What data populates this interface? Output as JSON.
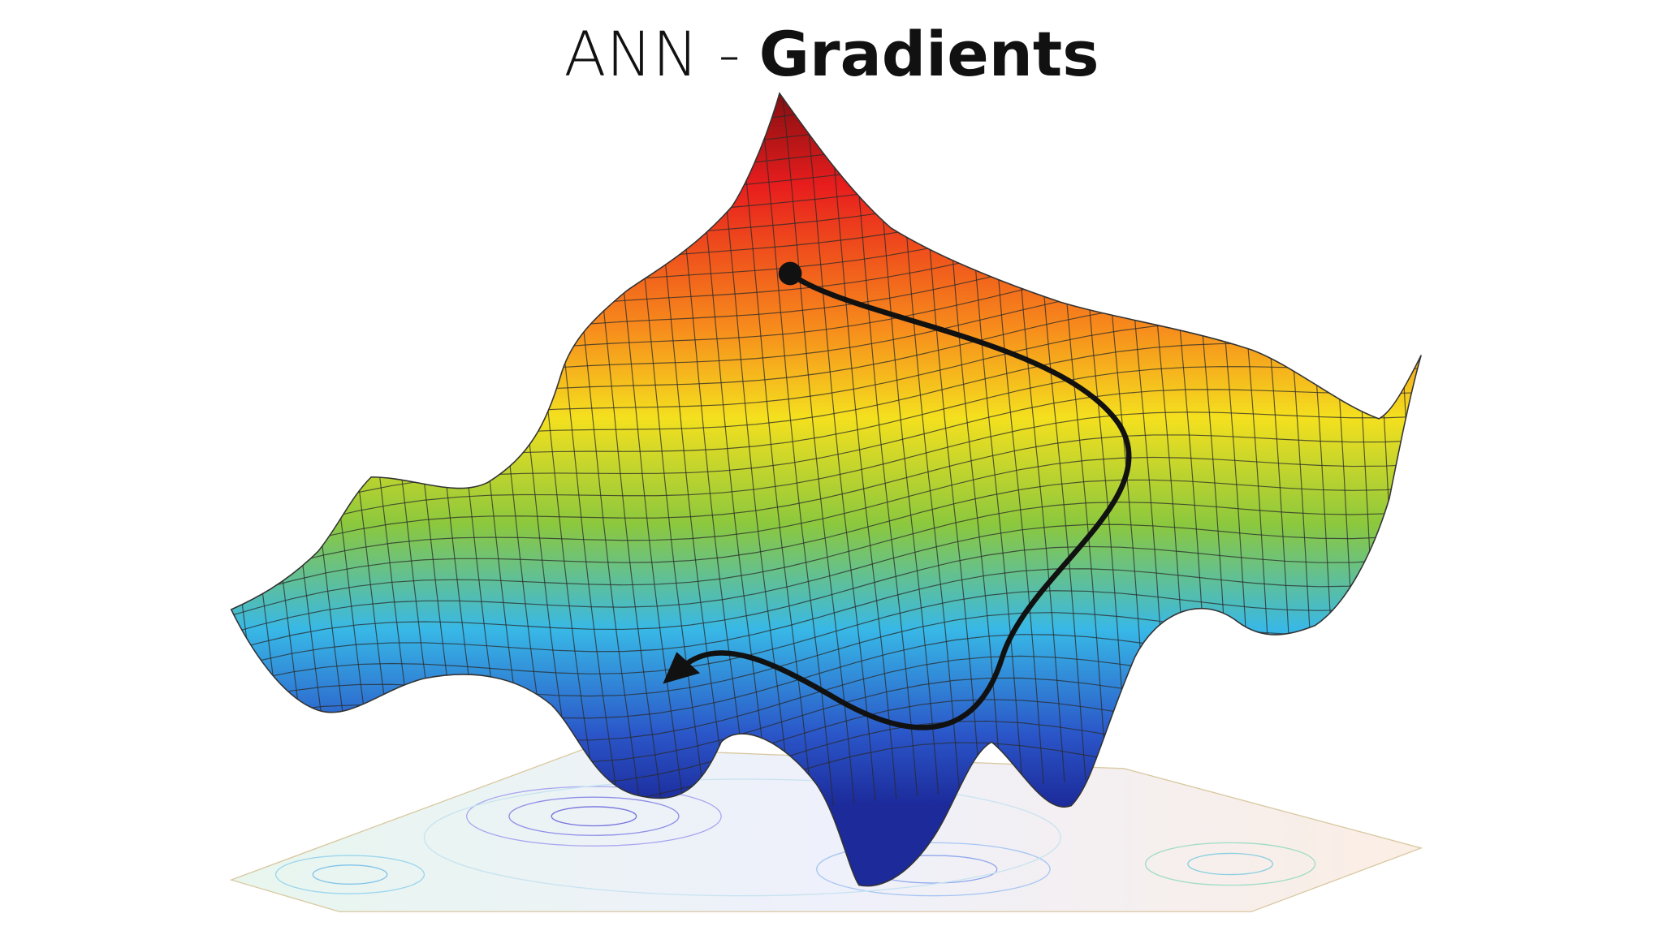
{
  "slide": {
    "title_prefix": "ANN -",
    "title_bold": "Gradients"
  }
}
